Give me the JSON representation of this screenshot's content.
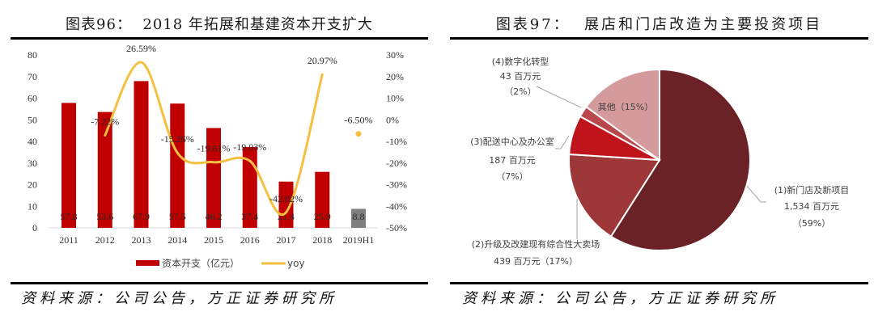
{
  "left_panel": {
    "title": "图表96：  2018 年拓展和基建资本开支扩大",
    "source": "资料来源：公司公告，方正证券研究所"
  },
  "right_panel": {
    "title": "图表97：  展店和门店改造为主要投资项目",
    "source": "资料来源：公司公告，方正证券研究所"
  },
  "colors": {
    "bar": "#c00000",
    "bar_highlight": "#7f7f7f",
    "line": "#f5c040",
    "axis": "#d9d9d9",
    "leader": "#a6a6a6",
    "rule": "#000000"
  },
  "chart_data": [
    {
      "type": "bar",
      "title": "2018 年拓展和基建资本开支扩大",
      "xlabel": "",
      "ylabel": "",
      "y2label": "",
      "categories": [
        "2011",
        "2012",
        "2013",
        "2014",
        "2015",
        "2016",
        "2017",
        "2018",
        "2019H1"
      ],
      "ylim": [
        0,
        80
      ],
      "yticks": [
        "0",
        "10",
        "20",
        "30",
        "40",
        "50",
        "60",
        "70",
        "80"
      ],
      "y2lim": [
        -50,
        30
      ],
      "y2ticks": [
        "-50%",
        "-40%",
        "-30%",
        "-20%",
        "-10%",
        "0%",
        "10%",
        "20%",
        "30%"
      ],
      "grid": false,
      "legend_position": "bottom",
      "series": [
        {
          "name": "资本开支（亿元）",
          "type": "bar",
          "axis": "left",
          "values": [
            57.8,
            53.6,
            67.9,
            57.5,
            46.2,
            37.4,
            21.4,
            25.9,
            8.8
          ],
          "labels": [
            "57.8",
            "53.6",
            "67.9",
            "57.5",
            "46.2",
            "37.4",
            "21.4",
            "25.9",
            "8.8"
          ],
          "color": "#c00000",
          "point_colors": [
            "#c00000",
            "#c00000",
            "#c00000",
            "#c00000",
            "#c00000",
            "#c00000",
            "#c00000",
            "#c00000",
            "#7f7f7f"
          ]
        },
        {
          "name": "yoy",
          "type": "line",
          "axis": "right",
          "smooth": true,
          "values": [
            null,
            -7.22,
            26.59,
            -15.26,
            -19.61,
            -19.03,
            -42.82,
            20.97,
            -6.5
          ],
          "labels": [
            "",
            "-7.22%",
            "26.59%",
            "-15.26%",
            "-19.61%",
            "-19.03%",
            "-42.82%",
            "20.97%",
            "-6.50%"
          ],
          "line_until_index": 7,
          "color": "#f5c040"
        }
      ]
    },
    {
      "type": "pie",
      "title": "展店和门店改造为主要投资项目",
      "unit": "百万元",
      "start": "12 o'clock",
      "direction": "clockwise",
      "slices": [
        {
          "name": "(1)新门店及新项目",
          "value": 1534,
          "percent": 59,
          "color": "#6b2226",
          "label_lines": [
            "(1)新门店及新项目",
            "1,534 百万元",
            "（59%）"
          ]
        },
        {
          "name": "(2)升级及改建现有综合性大卖场",
          "value": 439,
          "percent": 17,
          "color": "#9e3737",
          "label_lines": [
            "(2)升级及改建现有综合性大卖场",
            "439 百万元（17%）"
          ]
        },
        {
          "name": "(3)配送中心及办公室",
          "value": 187,
          "percent": 7,
          "color": "#c0141c",
          "label_lines": [
            "(3)配送中心及办公室",
            "187 百万元",
            "（7%）"
          ]
        },
        {
          "name": "(4)数字化转型",
          "value": 43,
          "percent": 2,
          "color": "#b9474b",
          "label_lines": [
            "(4)数字化转型",
            "43 百万元",
            "（2%）"
          ]
        },
        {
          "name": "其他",
          "value": null,
          "percent": 15,
          "color": "#d49a9c",
          "label_lines": [
            "其他（15%）"
          ]
        }
      ]
    }
  ]
}
